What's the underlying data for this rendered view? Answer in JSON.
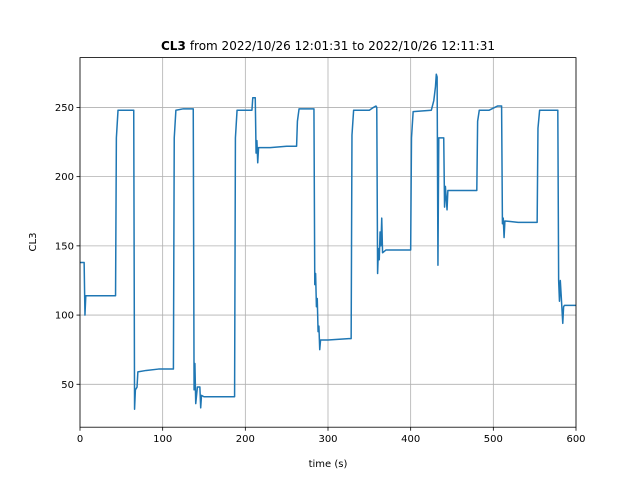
{
  "chart_data": {
    "type": "line",
    "title": [
      "CL3",
      "from 2022/10/26 12:01:31 to 2022/10/26 12:11:31"
    ],
    "xlabel": "time (s)",
    "ylabel": "CL3",
    "xlim": [
      0,
      600
    ],
    "xticks": [
      0,
      100,
      200,
      300,
      400,
      500,
      600
    ],
    "ylim": [
      19,
      286
    ],
    "yticks": [
      50,
      100,
      150,
      200,
      250
    ],
    "grid": true,
    "series": [
      {
        "name": "CL3",
        "color": "#1f77b4",
        "x": [
          0,
          5,
          6,
          7,
          43,
          44,
          46,
          65,
          66,
          67,
          69,
          70,
          80,
          95,
          113,
          114,
          116,
          125,
          137,
          138,
          139,
          140,
          142,
          145,
          146,
          147,
          150,
          187,
          188,
          190,
          208,
          209,
          212,
          213,
          214,
          215,
          216,
          230,
          250,
          262,
          263,
          265,
          283,
          284,
          285,
          286,
          287,
          288,
          289,
          290,
          291,
          300,
          325,
          328,
          329,
          331,
          350,
          355,
          358,
          359,
          360,
          361,
          362,
          363,
          364,
          365,
          366,
          370,
          400,
          401,
          403,
          425,
          428,
          430,
          431,
          432,
          433,
          434,
          440,
          441,
          442,
          444,
          445,
          460,
          480,
          481,
          483,
          495,
          505,
          510,
          511,
          512,
          513,
          514,
          530,
          553,
          554,
          556,
          578,
          579,
          580,
          581,
          582,
          584,
          585,
          586,
          600
        ],
        "values": [
          138,
          138,
          100,
          114,
          114,
          228,
          248,
          248,
          32,
          46,
          48,
          59,
          60,
          61,
          61,
          228,
          248,
          249,
          249,
          46,
          65,
          36,
          48,
          48,
          33,
          42,
          41,
          41,
          228,
          248,
          248,
          257,
          257,
          217,
          226,
          210,
          221,
          221,
          222,
          222,
          240,
          249,
          249,
          122,
          130,
          106,
          112,
          88,
          92,
          75,
          82,
          82,
          83,
          83,
          230,
          248,
          248,
          250,
          251,
          250,
          130,
          148,
          140,
          160,
          150,
          170,
          145,
          147,
          147,
          228,
          247,
          248,
          255,
          265,
          274,
          272,
          136,
          228,
          228,
          178,
          193,
          176,
          190,
          190,
          190,
          240,
          248,
          248,
          251,
          251,
          166,
          170,
          156,
          168,
          167,
          167,
          235,
          248,
          248,
          125,
          110,
          125,
          115,
          94,
          106,
          107,
          107
        ]
      }
    ]
  }
}
